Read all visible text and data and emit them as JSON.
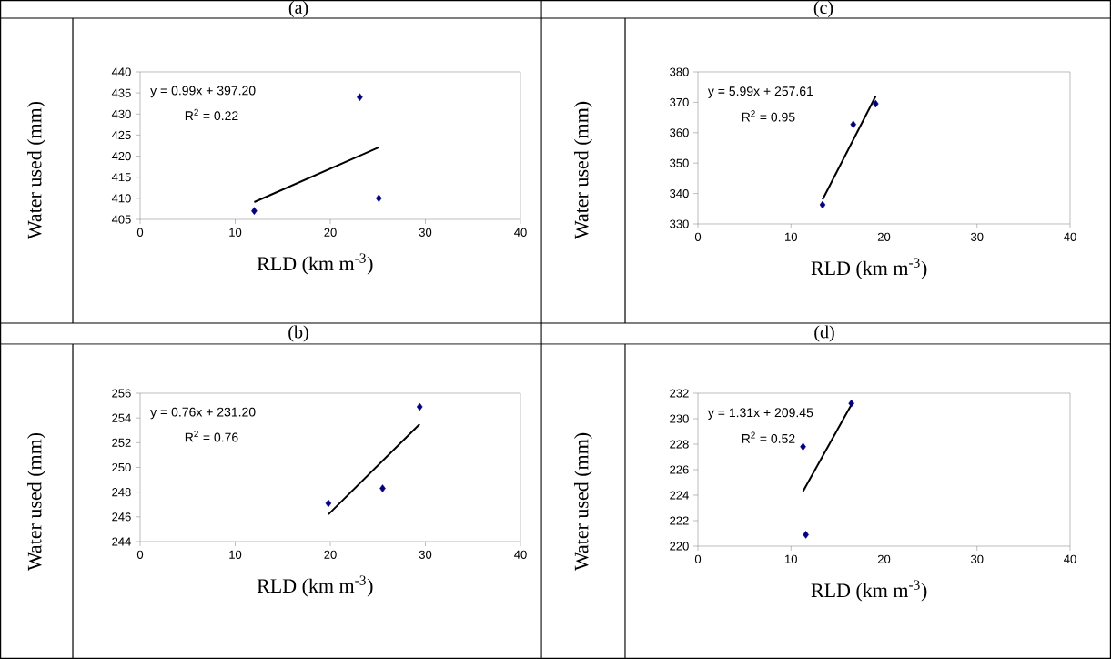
{
  "chart_data": [
    {
      "type": "scatter",
      "title": "(a)",
      "xlabel": "RLD (km m$^{-3}$)",
      "ylabel": "Water used (mm)",
      "xlim": [
        0,
        40
      ],
      "xticks": [
        0,
        10,
        20,
        30,
        40
      ],
      "ylim": [
        405,
        440
      ],
      "yticks": [
        405,
        410,
        415,
        420,
        425,
        430,
        435,
        440
      ],
      "series": [
        {
          "type": "scatter",
          "marker": "diamond",
          "color": "#000080",
          "x": [
            12.0,
            23.1,
            25.1
          ],
          "values": [
            407,
            434,
            410
          ]
        },
        {
          "type": "line",
          "color": "#000000",
          "x": [
            12.0,
            25.1
          ],
          "values": [
            409.1,
            422.1
          ]
        }
      ],
      "annotations": [
        "y = 0.99x + 397.20",
        "R$^{2}$ = 0.22"
      ]
    },
    {
      "type": "scatter",
      "title": "(c)",
      "xlabel": "RLD (km m$^{-3}$)",
      "ylabel": "Water used (mm)",
      "xlim": [
        0,
        40
      ],
      "xticks": [
        0,
        10,
        20,
        30,
        40
      ],
      "ylim": [
        330,
        380
      ],
      "yticks": [
        330,
        340,
        350,
        360,
        370,
        380
      ],
      "series": [
        {
          "type": "scatter",
          "marker": "diamond",
          "color": "#000080",
          "x": [
            13.4,
            16.7,
            19.1
          ],
          "values": [
            336.3,
            362.7,
            369.5
          ]
        },
        {
          "type": "line",
          "color": "#000000",
          "x": [
            13.4,
            19.1
          ],
          "values": [
            338.0,
            372.0
          ]
        }
      ],
      "annotations": [
        "y = 5.99x + 257.61",
        "R$^{2}$ = 0.95"
      ]
    },
    {
      "type": "scatter",
      "title": "(b)",
      "xlabel": "RLD (km m$^{-3}$)",
      "ylabel": "Water used (mm)",
      "xlim": [
        0,
        40
      ],
      "xticks": [
        0,
        10,
        20,
        30,
        40
      ],
      "ylim": [
        244,
        256
      ],
      "yticks": [
        244,
        246,
        248,
        250,
        252,
        254,
        256
      ],
      "series": [
        {
          "type": "scatter",
          "marker": "diamond",
          "color": "#000080",
          "x": [
            19.8,
            25.5,
            29.4
          ],
          "values": [
            247.1,
            248.3,
            254.9
          ]
        },
        {
          "type": "line",
          "color": "#000000",
          "x": [
            19.8,
            29.4
          ],
          "values": [
            246.2,
            253.5
          ]
        }
      ],
      "annotations": [
        "y = 0.76x + 231.20",
        "R$^{2}$ = 0.76"
      ]
    },
    {
      "type": "scatter",
      "title": "(d)",
      "xlabel": "RLD (km m$^{-3}$)",
      "ylabel": "Water used (mm)",
      "xlim": [
        0,
        40
      ],
      "xticks": [
        0,
        10,
        20,
        30,
        40
      ],
      "ylim": [
        220,
        232
      ],
      "yticks": [
        220,
        222,
        224,
        226,
        228,
        230,
        232
      ],
      "series": [
        {
          "type": "scatter",
          "marker": "diamond",
          "color": "#000080",
          "x": [
            11.3,
            11.6,
            16.5
          ],
          "values": [
            227.8,
            220.9,
            231.2
          ]
        },
        {
          "type": "line",
          "color": "#000000",
          "x": [
            11.3,
            16.5
          ],
          "values": [
            224.3,
            231.1
          ]
        }
      ],
      "annotations": [
        "y = 1.31x + 209.45",
        "R$^{2}$ = 0.52"
      ]
    }
  ]
}
